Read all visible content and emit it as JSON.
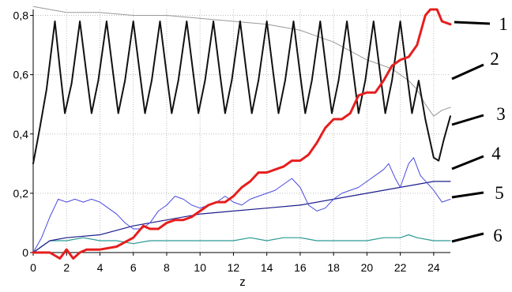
{
  "chart_data": {
    "type": "line",
    "title": "",
    "xlabel": "z",
    "ylabel": "",
    "xlim": [
      0,
      25
    ],
    "ylim": [
      0,
      0.82
    ],
    "xticks": [
      0,
      2,
      4,
      6,
      8,
      10,
      12,
      14,
      16,
      18,
      20,
      22,
      24
    ],
    "xtick_labels": [
      "0",
      "2",
      "4",
      "6",
      "8",
      "10",
      "12",
      "14",
      "16",
      "18",
      "20",
      "22",
      "24"
    ],
    "yticks": [
      0,
      0.2,
      0.4,
      0.6,
      0.8
    ],
    "ytick_labels": [
      "0",
      "0,2",
      "0,4",
      "0,6",
      "0,8"
    ],
    "grid": true,
    "grid_style": "dotted",
    "legend": "none",
    "series": [
      {
        "name": "1",
        "color": "#111111",
        "note": "oscillating curve",
        "points": [
          [
            0,
            0.3
          ],
          [
            0.4,
            0.42
          ],
          [
            0.8,
            0.55
          ],
          [
            1.3,
            0.78
          ],
          [
            1.6,
            0.62
          ],
          [
            1.9,
            0.47
          ],
          [
            2.3,
            0.57
          ],
          [
            2.8,
            0.78
          ],
          [
            3.2,
            0.6
          ],
          [
            3.5,
            0.47
          ],
          [
            3.9,
            0.58
          ],
          [
            4.4,
            0.78
          ],
          [
            4.8,
            0.6
          ],
          [
            5.1,
            0.47
          ],
          [
            5.5,
            0.58
          ],
          [
            6.0,
            0.78
          ],
          [
            6.4,
            0.6
          ],
          [
            6.7,
            0.47
          ],
          [
            7.1,
            0.58
          ],
          [
            7.6,
            0.78
          ],
          [
            8.0,
            0.6
          ],
          [
            8.3,
            0.47
          ],
          [
            8.7,
            0.58
          ],
          [
            9.2,
            0.78
          ],
          [
            9.6,
            0.6
          ],
          [
            9.9,
            0.47
          ],
          [
            10.3,
            0.58
          ],
          [
            10.8,
            0.78
          ],
          [
            11.2,
            0.6
          ],
          [
            11.5,
            0.47
          ],
          [
            11.9,
            0.58
          ],
          [
            12.4,
            0.78
          ],
          [
            12.8,
            0.6
          ],
          [
            13.1,
            0.47
          ],
          [
            13.5,
            0.58
          ],
          [
            14.0,
            0.78
          ],
          [
            14.4,
            0.6
          ],
          [
            14.7,
            0.47
          ],
          [
            15.1,
            0.58
          ],
          [
            15.6,
            0.78
          ],
          [
            16.0,
            0.6
          ],
          [
            16.3,
            0.47
          ],
          [
            16.7,
            0.58
          ],
          [
            17.2,
            0.78
          ],
          [
            17.6,
            0.6
          ],
          [
            17.9,
            0.47
          ],
          [
            18.3,
            0.58
          ],
          [
            18.8,
            0.78
          ],
          [
            19.2,
            0.6
          ],
          [
            19.5,
            0.47
          ],
          [
            19.9,
            0.58
          ],
          [
            20.4,
            0.78
          ],
          [
            20.8,
            0.6
          ],
          [
            21.1,
            0.47
          ],
          [
            21.5,
            0.58
          ],
          [
            22.0,
            0.78
          ],
          [
            22.4,
            0.6
          ],
          [
            22.7,
            0.47
          ],
          [
            23.1,
            0.58
          ],
          [
            23.5,
            0.45
          ],
          [
            24.0,
            0.32
          ],
          [
            24.3,
            0.31
          ],
          [
            24.6,
            0.38
          ],
          [
            25.0,
            0.46
          ]
        ]
      },
      {
        "name": "2",
        "color": "#999999",
        "note": "slowly decreasing curve",
        "points": [
          [
            0,
            0.83
          ],
          [
            2,
            0.81
          ],
          [
            4,
            0.81
          ],
          [
            6,
            0.8
          ],
          [
            8,
            0.8
          ],
          [
            10,
            0.79
          ],
          [
            12,
            0.78
          ],
          [
            14,
            0.77
          ],
          [
            15,
            0.76
          ],
          [
            16,
            0.75
          ],
          [
            17,
            0.73
          ],
          [
            18,
            0.71
          ],
          [
            19,
            0.68
          ],
          [
            20,
            0.65
          ],
          [
            21,
            0.63
          ],
          [
            21.5,
            0.62
          ],
          [
            22,
            0.6
          ],
          [
            22.5,
            0.58
          ],
          [
            23,
            0.55
          ],
          [
            23.5,
            0.5
          ],
          [
            24,
            0.46
          ],
          [
            24.5,
            0.48
          ],
          [
            25,
            0.49
          ]
        ]
      },
      {
        "name": "3",
        "color": "#e61e1e",
        "note": "thick rising curve",
        "points": [
          [
            0,
            0.0
          ],
          [
            1,
            0.0
          ],
          [
            1.6,
            -0.02
          ],
          [
            2,
            0.01
          ],
          [
            2.4,
            -0.02
          ],
          [
            2.8,
            0.0
          ],
          [
            3.2,
            0.01
          ],
          [
            4,
            0.01
          ],
          [
            5,
            0.02
          ],
          [
            6,
            0.05
          ],
          [
            6.6,
            0.09
          ],
          [
            7,
            0.08
          ],
          [
            7.5,
            0.08
          ],
          [
            8,
            0.1
          ],
          [
            8.5,
            0.11
          ],
          [
            9,
            0.11
          ],
          [
            9.5,
            0.12
          ],
          [
            10,
            0.14
          ],
          [
            10.5,
            0.16
          ],
          [
            11,
            0.17
          ],
          [
            11.5,
            0.17
          ],
          [
            12,
            0.19
          ],
          [
            12.5,
            0.22
          ],
          [
            13,
            0.24
          ],
          [
            13.5,
            0.27
          ],
          [
            14,
            0.27
          ],
          [
            14.5,
            0.28
          ],
          [
            15,
            0.29
          ],
          [
            15.5,
            0.31
          ],
          [
            16,
            0.31
          ],
          [
            16.5,
            0.33
          ],
          [
            17,
            0.37
          ],
          [
            17.5,
            0.42
          ],
          [
            18,
            0.45
          ],
          [
            18.5,
            0.45
          ],
          [
            19,
            0.47
          ],
          [
            19.5,
            0.53
          ],
          [
            20,
            0.54
          ],
          [
            20.5,
            0.54
          ],
          [
            21,
            0.58
          ],
          [
            21.5,
            0.63
          ],
          [
            22,
            0.65
          ],
          [
            22.5,
            0.66
          ],
          [
            23,
            0.7
          ],
          [
            23.5,
            0.8
          ],
          [
            23.8,
            0.82
          ],
          [
            24.2,
            0.82
          ],
          [
            24.5,
            0.78
          ],
          [
            25,
            0.77
          ]
        ]
      },
      {
        "name": "4",
        "color": "#4a4ae0",
        "note": "thin fluctuating blue curve",
        "points": [
          [
            0,
            0.0
          ],
          [
            0.5,
            0.05
          ],
          [
            1,
            0.12
          ],
          [
            1.5,
            0.18
          ],
          [
            2,
            0.17
          ],
          [
            2.5,
            0.18
          ],
          [
            3,
            0.17
          ],
          [
            3.5,
            0.18
          ],
          [
            4,
            0.17
          ],
          [
            4.5,
            0.15
          ],
          [
            5,
            0.13
          ],
          [
            5.5,
            0.1
          ],
          [
            6,
            0.08
          ],
          [
            6.5,
            0.08
          ],
          [
            7,
            0.1
          ],
          [
            7.5,
            0.14
          ],
          [
            8,
            0.16
          ],
          [
            8.5,
            0.19
          ],
          [
            9,
            0.18
          ],
          [
            9.5,
            0.16
          ],
          [
            10,
            0.15
          ],
          [
            10.5,
            0.16
          ],
          [
            11,
            0.17
          ],
          [
            11.5,
            0.19
          ],
          [
            12,
            0.17
          ],
          [
            12.5,
            0.16
          ],
          [
            13,
            0.18
          ],
          [
            13.5,
            0.19
          ],
          [
            14,
            0.2
          ],
          [
            14.5,
            0.21
          ],
          [
            15,
            0.23
          ],
          [
            15.5,
            0.25
          ],
          [
            16,
            0.22
          ],
          [
            16.5,
            0.16
          ],
          [
            17,
            0.14
          ],
          [
            17.5,
            0.15
          ],
          [
            18,
            0.18
          ],
          [
            18.5,
            0.2
          ],
          [
            19,
            0.21
          ],
          [
            19.5,
            0.22
          ],
          [
            20,
            0.24
          ],
          [
            20.5,
            0.26
          ],
          [
            21,
            0.28
          ],
          [
            21.3,
            0.3
          ],
          [
            21.7,
            0.25
          ],
          [
            22,
            0.22
          ],
          [
            22.5,
            0.3
          ],
          [
            22.8,
            0.32
          ],
          [
            23.2,
            0.26
          ],
          [
            24,
            0.21
          ],
          [
            24.5,
            0.17
          ],
          [
            25,
            0.18
          ]
        ]
      },
      {
        "name": "5",
        "color": "#1c1c8a",
        "note": "steady rising navy curve",
        "points": [
          [
            0,
            0.0
          ],
          [
            1,
            0.04
          ],
          [
            2,
            0.05
          ],
          [
            4,
            0.06
          ],
          [
            6,
            0.09
          ],
          [
            8,
            0.11
          ],
          [
            10,
            0.13
          ],
          [
            12,
            0.14
          ],
          [
            14,
            0.15
          ],
          [
            16,
            0.16
          ],
          [
            18,
            0.18
          ],
          [
            20,
            0.2
          ],
          [
            22,
            0.22
          ],
          [
            23,
            0.23
          ],
          [
            24,
            0.24
          ],
          [
            25,
            0.24
          ]
        ]
      },
      {
        "name": "6",
        "color": "#2a9a93",
        "note": "low teal curve",
        "points": [
          [
            0,
            0.0
          ],
          [
            1,
            0.04
          ],
          [
            2,
            0.04
          ],
          [
            3,
            0.05
          ],
          [
            4,
            0.04
          ],
          [
            5,
            0.04
          ],
          [
            6,
            0.03
          ],
          [
            7,
            0.04
          ],
          [
            8,
            0.04
          ],
          [
            9,
            0.04
          ],
          [
            10,
            0.04
          ],
          [
            11,
            0.04
          ],
          [
            12,
            0.04
          ],
          [
            13,
            0.05
          ],
          [
            14,
            0.04
          ],
          [
            15,
            0.05
          ],
          [
            16,
            0.05
          ],
          [
            17,
            0.04
          ],
          [
            18,
            0.04
          ],
          [
            19,
            0.04
          ],
          [
            20,
            0.04
          ],
          [
            21,
            0.05
          ],
          [
            22,
            0.05
          ],
          [
            22.5,
            0.06
          ],
          [
            23,
            0.05
          ],
          [
            24,
            0.04
          ],
          [
            25,
            0.04
          ]
        ]
      }
    ]
  }
}
